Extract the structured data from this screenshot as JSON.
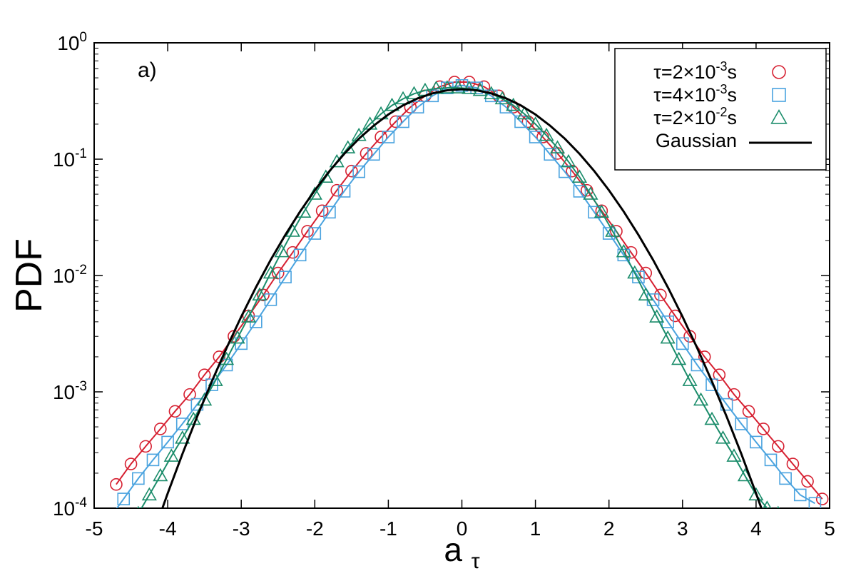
{
  "chart_data": {
    "type": "scatter",
    "panel_label": "a)",
    "xlabel": {
      "base": "a",
      "sub": "τ"
    },
    "ylabel": "PDF",
    "xlim": [
      -5,
      5
    ],
    "ylim": [
      0.0001,
      1
    ],
    "yscale": "log",
    "x_ticks": [
      "-5",
      "-4",
      "-3",
      "-2",
      "-1",
      "0",
      "1",
      "2",
      "3",
      "4",
      "5"
    ],
    "y_ticks": [
      {
        "base": "10",
        "exp": "0"
      },
      {
        "base": "10",
        "exp": "-1"
      },
      {
        "base": "10",
        "exp": "-2"
      },
      {
        "base": "10",
        "exp": "-3"
      },
      {
        "base": "10",
        "exp": "-4"
      }
    ],
    "legend_position": "top-right",
    "series": [
      {
        "name": "τ=2×10⁻³s",
        "legend": {
          "pre": "τ=2×10",
          "exp": "-3",
          "post": "s"
        },
        "marker": "circle",
        "color": "#d62031",
        "x": [
          -4.7,
          -4.5,
          -4.3,
          -4.1,
          -3.9,
          -3.7,
          -3.5,
          -3.3,
          -3.1,
          -2.9,
          -2.7,
          -2.5,
          -2.3,
          -2.1,
          -1.9,
          -1.7,
          -1.5,
          -1.3,
          -1.1,
          -0.9,
          -0.7,
          -0.5,
          -0.3,
          -0.1,
          0.1,
          0.3,
          0.5,
          0.7,
          0.9,
          1.1,
          1.3,
          1.5,
          1.7,
          1.9,
          2.1,
          2.3,
          2.5,
          2.7,
          2.9,
          3.1,
          3.3,
          3.5,
          3.7,
          3.9,
          4.1,
          4.3,
          4.5,
          4.7,
          4.9
        ],
        "y": [
          0.00016,
          0.00024,
          0.00034,
          0.00048,
          0.00068,
          0.00095,
          0.0014,
          0.002,
          0.003,
          0.0045,
          0.0068,
          0.0105,
          0.0158,
          0.024,
          0.036,
          0.054,
          0.079,
          0.112,
          0.155,
          0.21,
          0.28,
          0.35,
          0.42,
          0.46,
          0.46,
          0.42,
          0.35,
          0.28,
          0.21,
          0.155,
          0.112,
          0.079,
          0.054,
          0.036,
          0.024,
          0.0158,
          0.0105,
          0.0068,
          0.0045,
          0.003,
          0.002,
          0.0014,
          0.00095,
          0.00068,
          0.00048,
          0.00034,
          0.00024,
          0.00017,
          0.00012
        ]
      },
      {
        "name": "τ=4×10⁻³s",
        "legend": {
          "pre": "τ=4×10",
          "exp": "-3",
          "post": "s"
        },
        "marker": "square",
        "color": "#4aa3df",
        "x": [
          -4.8,
          -4.6,
          -4.4,
          -4.2,
          -4.0,
          -3.8,
          -3.6,
          -3.4,
          -3.2,
          -3.0,
          -2.8,
          -2.6,
          -2.4,
          -2.2,
          -2.0,
          -1.8,
          -1.6,
          -1.4,
          -1.2,
          -1.0,
          -0.8,
          -0.6,
          -0.4,
          -0.2,
          0.0,
          0.2,
          0.4,
          0.6,
          0.8,
          1.0,
          1.2,
          1.4,
          1.6,
          1.8,
          2.0,
          2.2,
          2.4,
          2.6,
          2.8,
          3.0,
          3.2,
          3.4,
          3.6,
          3.8,
          4.0,
          4.2,
          4.4,
          4.6,
          4.8
        ],
        "y": [
          8e-05,
          0.00012,
          0.00018,
          0.00026,
          0.00037,
          0.00053,
          0.00078,
          0.00115,
          0.0017,
          0.0026,
          0.004,
          0.0062,
          0.0097,
          0.015,
          0.023,
          0.035,
          0.053,
          0.078,
          0.11,
          0.155,
          0.21,
          0.28,
          0.35,
          0.41,
          0.43,
          0.41,
          0.35,
          0.28,
          0.21,
          0.155,
          0.11,
          0.078,
          0.053,
          0.035,
          0.023,
          0.015,
          0.0097,
          0.0062,
          0.004,
          0.0026,
          0.0017,
          0.00115,
          0.00078,
          0.00053,
          0.00037,
          0.00026,
          0.00018,
          0.00013,
          0.00011
        ]
      },
      {
        "name": "τ=2×10⁻²s",
        "legend": {
          "pre": "τ=2×10",
          "exp": "-2",
          "post": "s"
        },
        "marker": "triangle",
        "color": "#1a8c6a",
        "x": [
          -4.4,
          -4.25,
          -4.1,
          -3.95,
          -3.8,
          -3.65,
          -3.5,
          -3.35,
          -3.2,
          -3.05,
          -2.9,
          -2.75,
          -2.6,
          -2.45,
          -2.3,
          -2.15,
          -2.0,
          -1.85,
          -1.7,
          -1.55,
          -1.4,
          -1.25,
          -1.1,
          -0.95,
          -0.8,
          -0.65,
          -0.5,
          -0.35,
          -0.2,
          -0.05,
          0.1,
          0.25,
          0.4,
          0.55,
          0.7,
          0.85,
          1.0,
          1.15,
          1.3,
          1.45,
          1.6,
          1.75,
          1.9,
          2.05,
          2.2,
          2.35,
          2.5,
          2.65,
          2.8,
          2.95,
          3.1,
          3.25,
          3.4,
          3.55,
          3.7,
          3.85,
          4.0,
          4.15,
          4.3
        ],
        "y": [
          9e-05,
          0.00013,
          0.00019,
          0.00028,
          0.0004,
          0.00058,
          0.00085,
          0.00125,
          0.0019,
          0.0029,
          0.0044,
          0.0068,
          0.0105,
          0.016,
          0.024,
          0.035,
          0.05,
          0.07,
          0.095,
          0.125,
          0.16,
          0.2,
          0.245,
          0.29,
          0.33,
          0.365,
          0.39,
          0.405,
          0.41,
          0.41,
          0.405,
          0.39,
          0.365,
          0.33,
          0.29,
          0.245,
          0.2,
          0.16,
          0.125,
          0.095,
          0.07,
          0.05,
          0.035,
          0.024,
          0.016,
          0.0105,
          0.0068,
          0.0044,
          0.0029,
          0.0019,
          0.00125,
          0.00085,
          0.00058,
          0.0004,
          0.00028,
          0.00019,
          0.00013,
          0.0001,
          9e-05
        ]
      },
      {
        "name": "Gaussian",
        "legend": {
          "pre": "Gaussian",
          "exp": "",
          "post": ""
        },
        "marker": "line",
        "color": "#000000",
        "x": [
          -4.1,
          -4.0,
          -3.8,
          -3.6,
          -3.4,
          -3.2,
          -3.0,
          -2.8,
          -2.6,
          -2.4,
          -2.2,
          -2.0,
          -1.8,
          -1.6,
          -1.4,
          -1.2,
          -1.0,
          -0.8,
          -0.6,
          -0.4,
          -0.2,
          0.0,
          0.2,
          0.4,
          0.6,
          0.8,
          1.0,
          1.2,
          1.4,
          1.6,
          1.8,
          2.0,
          2.2,
          2.4,
          2.6,
          2.8,
          3.0,
          3.2,
          3.4,
          3.6,
          3.8,
          4.0,
          4.1
        ],
        "y": [
          8.93e-05,
          0.000134,
          0.000292,
          0.000612,
          0.00123,
          0.00238,
          0.00443,
          0.00792,
          0.0136,
          0.0224,
          0.0355,
          0.054,
          0.079,
          0.111,
          0.15,
          0.194,
          0.242,
          0.29,
          0.333,
          0.368,
          0.391,
          0.399,
          0.391,
          0.368,
          0.333,
          0.29,
          0.242,
          0.194,
          0.15,
          0.111,
          0.079,
          0.054,
          0.0355,
          0.0224,
          0.0136,
          0.00792,
          0.00443,
          0.00238,
          0.00123,
          0.000612,
          0.000292,
          0.000134,
          8.93e-05
        ]
      }
    ]
  }
}
